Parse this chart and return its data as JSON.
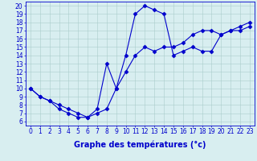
{
  "line1_x": [
    0,
    1,
    2,
    3,
    4,
    5,
    6,
    7,
    8,
    9,
    10,
    11,
    12,
    13,
    14,
    15,
    16,
    17,
    18,
    19,
    20,
    21,
    22,
    23
  ],
  "line1_y": [
    10.0,
    9.0,
    8.5,
    7.5,
    7.0,
    6.5,
    6.5,
    7.0,
    7.5,
    10.0,
    12.0,
    14.0,
    15.0,
    14.5,
    15.0,
    15.0,
    15.5,
    16.5,
    17.0,
    17.0,
    16.5,
    17.0,
    17.5,
    18.0
  ],
  "line2_x": [
    0,
    1,
    2,
    3,
    4,
    5,
    6,
    7,
    8,
    9,
    10,
    11,
    12,
    13,
    14,
    15,
    16,
    17,
    18,
    19,
    20,
    21,
    22,
    23
  ],
  "line2_y": [
    10.0,
    9.0,
    8.5,
    8.0,
    7.5,
    7.0,
    6.5,
    7.5,
    13.0,
    10.0,
    14.0,
    19.0,
    20.0,
    19.5,
    19.0,
    14.0,
    14.5,
    15.0,
    14.5,
    14.5,
    16.5,
    17.0,
    17.0,
    17.5
  ],
  "line_color": "#0000cc",
  "marker": "D",
  "markersize": 2.5,
  "linewidth": 0.8,
  "xlabel": "Graphe des températures (°c)",
  "xlabel_fontsize": 7,
  "xlim": [
    -0.5,
    23.5
  ],
  "ylim": [
    5.5,
    20.5
  ],
  "xticks": [
    0,
    1,
    2,
    3,
    4,
    5,
    6,
    7,
    8,
    9,
    10,
    11,
    12,
    13,
    14,
    15,
    16,
    17,
    18,
    19,
    20,
    21,
    22,
    23
  ],
  "yticks": [
    6,
    7,
    8,
    9,
    10,
    11,
    12,
    13,
    14,
    15,
    16,
    17,
    18,
    19,
    20
  ],
  "tick_fontsize": 5.5,
  "bg_color": "#d8eef0",
  "grid_color": "#aacccc",
  "axes_color": "#0000cc",
  "label_color": "#0000cc"
}
